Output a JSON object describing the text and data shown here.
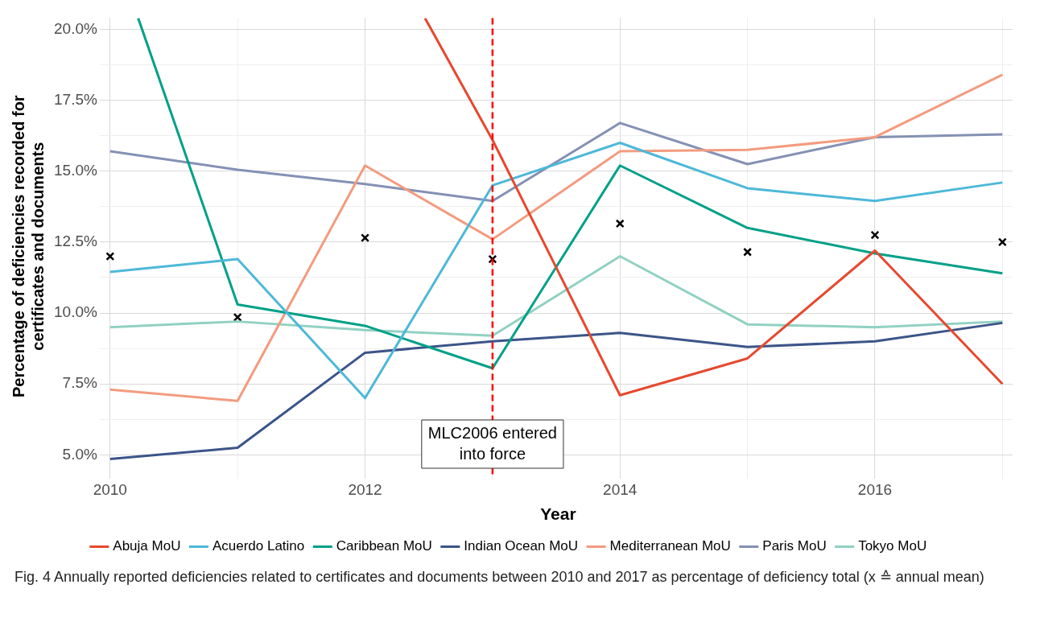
{
  "chart_data": {
    "type": "line",
    "xlabel": "Year",
    "ylabel": "Percentage of deficiencies recorded for certificates and documents",
    "x": [
      2010,
      2011,
      2012,
      2013,
      2014,
      2015,
      2016,
      2017
    ],
    "series": [
      {
        "name": "Abuja MoU",
        "color": "#e5492f",
        "x": [
          2012.47,
          2013,
          2014,
          2015,
          2016,
          2017
        ],
        "values": [
          20.4,
          16.1,
          7.1,
          8.4,
          12.2,
          7.5
        ]
      },
      {
        "name": "Acuerdo Latino",
        "color": "#4db8d8",
        "values": [
          11.45,
          11.9,
          7.0,
          14.5,
          16.0,
          14.4,
          13.95,
          14.6
        ]
      },
      {
        "name": "Caribbean MoU",
        "color": "#00a087",
        "x": [
          2010.22,
          2011,
          2012,
          2013,
          2014,
          2015,
          2016,
          2017
        ],
        "values": [
          20.4,
          10.3,
          9.55,
          8.05,
          15.2,
          13.0,
          12.1,
          11.4
        ]
      },
      {
        "name": "Indian Ocean MoU",
        "color": "#3c5488",
        "values": [
          4.85,
          5.25,
          8.6,
          9.0,
          9.3,
          8.8,
          9.0,
          9.65
        ]
      },
      {
        "name": "Mediterranean MoU",
        "color": "#f39b7f",
        "values": [
          7.3,
          6.9,
          15.2,
          12.6,
          15.7,
          15.75,
          16.2,
          18.4
        ]
      },
      {
        "name": "Paris MoU",
        "color": "#8491b4",
        "values": [
          15.7,
          15.05,
          14.55,
          13.95,
          16.7,
          15.25,
          16.2,
          16.3
        ]
      },
      {
        "name": "Tokyo MoU",
        "color": "#91d1c2",
        "values": [
          9.5,
          9.7,
          9.4,
          9.2,
          12.0,
          9.6,
          9.5,
          9.7
        ]
      },
      {
        "type": "scatter",
        "marker": "cross",
        "color": "#000000",
        "values": [
          12.0,
          9.85,
          12.65,
          11.9,
          13.15,
          12.15,
          12.75,
          12.5
        ]
      }
    ],
    "xlim": [
      2009.95,
      2017.08
    ],
    "ylim": [
      4.3,
      20.4
    ],
    "xticks": [
      2010,
      {
        "value": 2011,
        "label": null
      },
      2012,
      {
        "value": 2013,
        "label": null
      },
      2014,
      {
        "value": 2015,
        "label": null
      },
      2016,
      {
        "value": 2017,
        "label": null
      }
    ],
    "yticks": [
      {
        "value": 5,
        "label": "5.0%"
      },
      {
        "value": 6.25,
        "label": null
      },
      {
        "value": 7.5,
        "label": "7.5%"
      },
      {
        "value": 8.75,
        "label": null
      },
      {
        "value": 10,
        "label": "10.0%"
      },
      {
        "value": 11.25,
        "label": null
      },
      {
        "value": 12.5,
        "label": "12.5%"
      },
      {
        "value": 13.75,
        "label": null
      },
      {
        "value": 15,
        "label": "15.0%"
      },
      {
        "value": 16.25,
        "label": null
      },
      {
        "value": 17.5,
        "label": "17.5%"
      },
      {
        "value": 18.75,
        "label": null
      },
      {
        "value": 20,
        "label": "20.0%"
      }
    ],
    "ref_lines": [
      {
        "axis": "x",
        "value": 2013,
        "label": "MLC2006 entered into force",
        "color": "#ff0000",
        "line_style": "dashed"
      }
    ],
    "grid": true,
    "legend": "bottom",
    "annotations": [
      "Fig. 4 Annually reported deficiencies related to certificates and documents between 2010 and 2017 as percentage of deficiency total (x ≙ annual mean)"
    ]
  }
}
